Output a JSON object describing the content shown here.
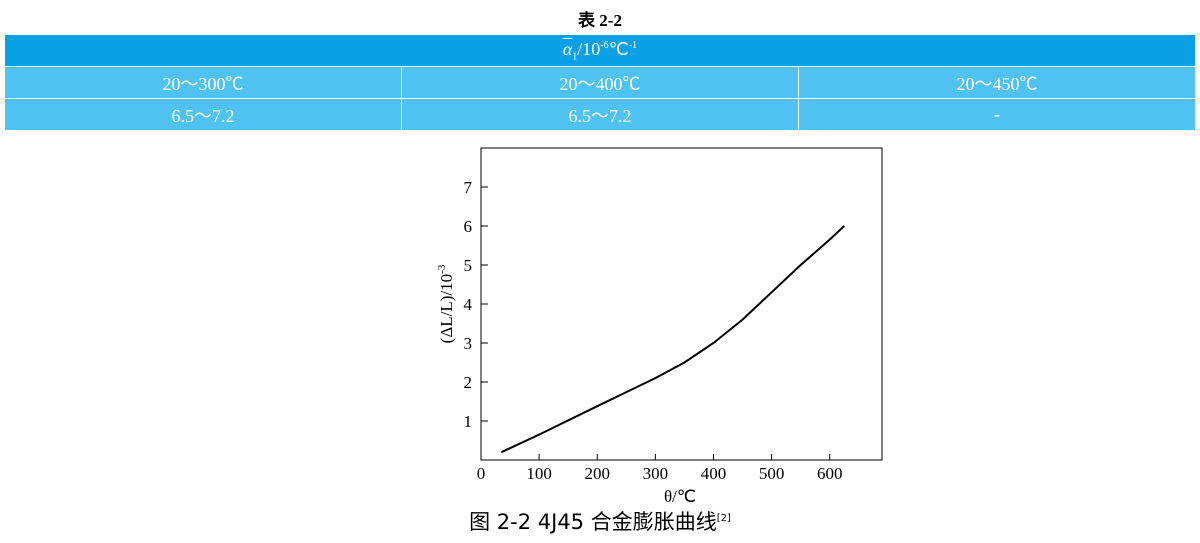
{
  "title": "表 2-2",
  "table": {
    "header": {
      "symbol": "α",
      "subscript": "1",
      "unit": "/10",
      "unit_exp": "-6",
      "unit_deg": "℃",
      "unit_deg_exp": "-1"
    },
    "rows": [
      [
        "20～300℃",
        "20～400℃",
        "20～450℃"
      ],
      [
        "6.5～7.2",
        "6.5～7.2",
        "-"
      ]
    ]
  },
  "chart_data": {
    "type": "line",
    "x_label": "θ/℃",
    "y_label": "(ΔL/L)/10",
    "y_label_exp": "-3",
    "x": [
      35,
      100,
      200,
      300,
      350,
      400,
      450,
      500,
      550,
      600,
      625
    ],
    "series": [
      {
        "color": "#000000",
        "values": [
          0.2,
          0.65,
          1.38,
          2.1,
          2.5,
          3.0,
          3.6,
          4.3,
          5.0,
          5.65,
          6.0
        ]
      }
    ],
    "xlim": [
      0,
      690
    ],
    "ylim": [
      0,
      8
    ],
    "xticks": [
      0,
      100,
      200,
      300,
      400,
      500,
      600
    ],
    "yticks": [
      1,
      2,
      3,
      4,
      5,
      6,
      7
    ]
  },
  "caption": {
    "text": "图 2-2 4J45 合金膨胀曲线",
    "ref": "[2]"
  }
}
